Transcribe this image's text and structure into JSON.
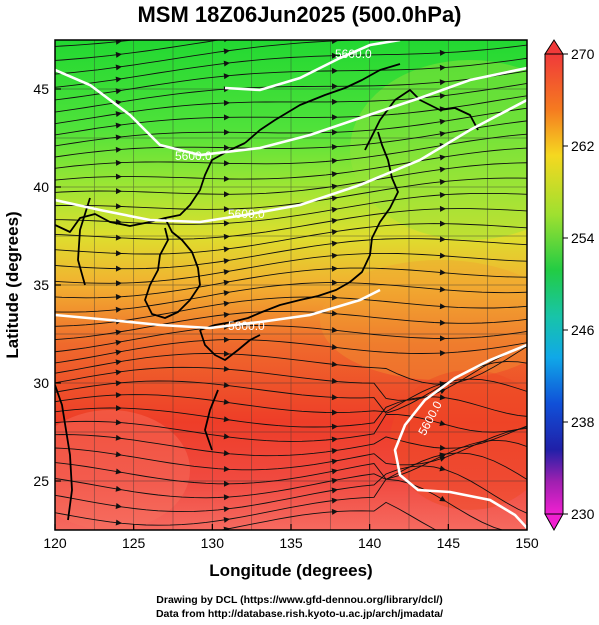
{
  "title": "MSM 18Z06Jun2025 (500.0hPa)",
  "axes": {
    "xlabel": "Longitude (degrees)",
    "ylabel": "Latitude  (degrees)",
    "x_ticks": [
      "120",
      "125",
      "130",
      "135",
      "140",
      "145",
      "150"
    ],
    "y_ticks": [
      "25",
      "30",
      "35",
      "40",
      "45"
    ]
  },
  "map_extent": {
    "lon": [
      120,
      150
    ],
    "lat": [
      22.5,
      47.5
    ]
  },
  "contours": [
    {
      "label": "5600.0"
    },
    {
      "label": "5600.0"
    },
    {
      "label": "5600.0"
    },
    {
      "label": "5600.0"
    },
    {
      "label": "5600.0"
    }
  ],
  "colorbar": {
    "ticks": [
      "270",
      "262",
      "254",
      "246",
      "238",
      "230"
    ],
    "min": 230,
    "max": 270
  },
  "credits": [
    "Drawing by DCL (https://www.gfd-dennou.org/library/dcl/)",
    "Data from http://database.rish.kyoto-u.ac.jp/arch/jmadata/"
  ]
}
